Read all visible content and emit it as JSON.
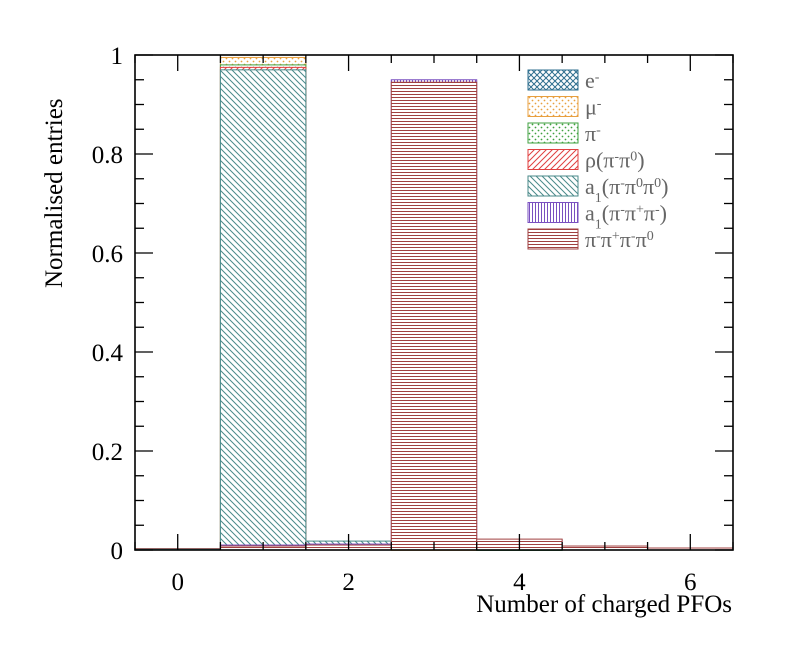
{
  "chart_data": {
    "type": "bar",
    "xlabel": "Number of charged PFOs",
    "ylabel": "Normalised entries",
    "xlim": [
      -0.5,
      6.5
    ],
    "ylim": [
      0,
      1
    ],
    "x_ticks": [
      "0",
      "2",
      "4",
      "6"
    ],
    "y_ticks": [
      "0",
      "0.2",
      "0.4",
      "0.6",
      "0.8",
      "1"
    ],
    "grid": false,
    "legend_position": "top-right",
    "x": [
      0,
      1,
      2,
      3,
      4,
      5,
      6
    ],
    "series": [
      {
        "name": "e-",
        "color": "#2f6f8f",
        "pattern": "crosshatch",
        "values": [
          0.0,
          0.99,
          0.006,
          0.003,
          0.001,
          0.0,
          0.0
        ]
      },
      {
        "name": "μ-",
        "color": "#e8a040",
        "pattern": "dots",
        "values": [
          0.0,
          0.995,
          0.004,
          0.001,
          0.0,
          0.0,
          0.0
        ]
      },
      {
        "name": "π-",
        "color": "#40a040",
        "pattern": "dots",
        "values": [
          0.003,
          0.98,
          0.012,
          0.004,
          0.001,
          0.0,
          0.0
        ]
      },
      {
        "name": "ρ(π-π0)",
        "color": "#e04040",
        "pattern": "diagonal",
        "values": [
          0.003,
          0.975,
          0.015,
          0.005,
          0.002,
          0.0,
          0.0
        ]
      },
      {
        "name": "a1(π-π0π0)",
        "color": "#4a8a8a",
        "pattern": "anti-diagonal",
        "values": [
          0.002,
          0.97,
          0.018,
          0.007,
          0.003,
          0.0,
          0.0
        ]
      },
      {
        "name": "a1(π-π+π-)",
        "color": "#7a50c0",
        "pattern": "vertical",
        "values": [
          0.0,
          0.01,
          0.012,
          0.95,
          0.02,
          0.005,
          0.002
        ]
      },
      {
        "name": "π-π+π-π0",
        "color": "#a04040",
        "pattern": "horizontal",
        "values": [
          0.0,
          0.008,
          0.01,
          0.945,
          0.022,
          0.008,
          0.004
        ]
      }
    ],
    "legend_labels": [
      {
        "base": "e",
        "parts": [
          [
            "sup",
            "-"
          ]
        ]
      },
      {
        "base": "μ",
        "parts": [
          [
            "sup",
            "-"
          ]
        ]
      },
      {
        "base": "π",
        "parts": [
          [
            "sup",
            "-"
          ]
        ]
      },
      {
        "base": "ρ(π",
        "parts": [
          [
            "sup",
            "-"
          ],
          [
            "txt",
            "π"
          ],
          [
            "sup",
            "0"
          ],
          [
            "txt",
            ")"
          ]
        ]
      },
      {
        "base": "a",
        "parts": [
          [
            "sub",
            "1"
          ],
          [
            "txt",
            "(π"
          ],
          [
            "sup",
            "-"
          ],
          [
            "txt",
            "π"
          ],
          [
            "sup",
            "0"
          ],
          [
            "txt",
            "π"
          ],
          [
            "sup",
            "0"
          ],
          [
            "txt",
            ")"
          ]
        ]
      },
      {
        "base": "a",
        "parts": [
          [
            "sub",
            "1"
          ],
          [
            "txt",
            "(π"
          ],
          [
            "sup",
            "-"
          ],
          [
            "txt",
            "π"
          ],
          [
            "sup",
            "+"
          ],
          [
            "txt",
            "π"
          ],
          [
            "sup",
            "-"
          ],
          [
            "txt",
            ")"
          ]
        ]
      },
      {
        "base": "π",
        "parts": [
          [
            "sup",
            "-"
          ],
          [
            "txt",
            "π"
          ],
          [
            "sup",
            "+"
          ],
          [
            "txt",
            "π"
          ],
          [
            "sup",
            "-"
          ],
          [
            "txt",
            "π"
          ],
          [
            "sup",
            "0"
          ]
        ]
      }
    ]
  }
}
